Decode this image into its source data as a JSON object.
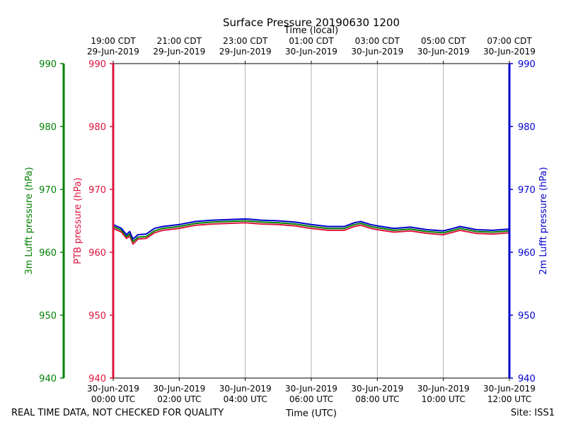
{
  "chart_data": {
    "type": "line",
    "title": "Surface Pressure 20190630 1200",
    "top_axis_label": "Time (local)",
    "xlabel": "Time (UTC)",
    "footer_left": "REAL TIME DATA, NOT CHECKED FOR QUALITY",
    "footer_right": "Site: ISS1",
    "grid": "vertical lines at x ticks",
    "xlim_utc_hours": [
      0,
      12
    ],
    "ylim": [
      940,
      990
    ],
    "y_ticks": [
      940,
      950,
      960,
      970,
      980,
      990
    ],
    "x_ticks_bottom": [
      {
        "hour": 0,
        "date": "30-Jun-2019",
        "time": "00:00 UTC"
      },
      {
        "hour": 2,
        "date": "30-Jun-2019",
        "time": "02:00 UTC"
      },
      {
        "hour": 4,
        "date": "30-Jun-2019",
        "time": "04:00 UTC"
      },
      {
        "hour": 6,
        "date": "30-Jun-2019",
        "time": "06:00 UTC"
      },
      {
        "hour": 8,
        "date": "30-Jun-2019",
        "time": "08:00 UTC"
      },
      {
        "hour": 10,
        "date": "30-Jun-2019",
        "time": "10:00 UTC"
      },
      {
        "hour": 12,
        "date": "30-Jun-2019",
        "time": "12:00 UTC"
      }
    ],
    "x_ticks_top": [
      {
        "hour": 0,
        "time": "19:00 CDT",
        "date": "29-Jun-2019"
      },
      {
        "hour": 2,
        "time": "21:00 CDT",
        "date": "29-Jun-2019"
      },
      {
        "hour": 4,
        "time": "23:00 CDT",
        "date": "29-Jun-2019"
      },
      {
        "hour": 6,
        "time": "01:00 CDT",
        "date": "30-Jun-2019"
      },
      {
        "hour": 8,
        "time": "03:00 CDT",
        "date": "30-Jun-2019"
      },
      {
        "hour": 10,
        "time": "05:00 CDT",
        "date": "30-Jun-2019"
      },
      {
        "hour": 12,
        "time": "07:00 CDT",
        "date": "30-Jun-2019"
      }
    ],
    "axes": [
      {
        "id": "lufft3m",
        "label": "3m Lufft pressure (hPa)",
        "color": "#008000",
        "side": "far-left"
      },
      {
        "id": "ptb",
        "label": "PTB pressure (hPa)",
        "color": "#dc143c",
        "side": "left"
      },
      {
        "id": "lufft2m",
        "label": "2m Lufft pressure (hPa)",
        "color": "#0000cd",
        "side": "right"
      }
    ],
    "x": [
      0,
      0.25,
      0.4,
      0.5,
      0.6,
      0.75,
      1.0,
      1.25,
      1.5,
      2.0,
      2.5,
      3.0,
      3.5,
      4.0,
      4.5,
      5.0,
      5.5,
      6.0,
      6.5,
      7.0,
      7.3,
      7.5,
      7.8,
      8.0,
      8.5,
      9.0,
      9.5,
      10.0,
      10.3,
      10.5,
      11.0,
      11.5,
      12.0
    ],
    "series": [
      {
        "axis": "ptb",
        "color": "#dc143c",
        "values": [
          963.8,
          963.2,
          962.2,
          962.6,
          961.3,
          962.1,
          962.2,
          963.1,
          963.5,
          963.8,
          964.3,
          964.5,
          964.6,
          964.7,
          964.5,
          964.4,
          964.2,
          963.8,
          963.5,
          963.5,
          964.1,
          964.3,
          963.8,
          963.6,
          963.2,
          963.4,
          963.0,
          962.8,
          963.2,
          963.5,
          963.0,
          962.9,
          963.1
        ]
      },
      {
        "axis": "lufft3m",
        "color": "#008000",
        "values": [
          964.1,
          963.5,
          962.5,
          962.9,
          961.7,
          962.4,
          962.5,
          963.4,
          963.8,
          964.1,
          964.6,
          964.8,
          964.9,
          965.0,
          964.8,
          964.7,
          964.5,
          964.1,
          963.8,
          963.8,
          964.4,
          964.6,
          964.1,
          963.9,
          963.5,
          963.7,
          963.3,
          963.1,
          963.5,
          963.8,
          963.3,
          963.2,
          963.4
        ]
      },
      {
        "axis": "lufft2m",
        "color": "#0000cd",
        "values": [
          964.4,
          963.8,
          962.8,
          963.3,
          962.1,
          962.8,
          962.9,
          963.8,
          964.1,
          964.4,
          964.9,
          965.1,
          965.2,
          965.3,
          965.1,
          965.0,
          964.8,
          964.4,
          964.1,
          964.1,
          964.7,
          964.9,
          964.4,
          964.2,
          963.8,
          964.0,
          963.6,
          963.4,
          963.8,
          964.1,
          963.6,
          963.5,
          963.7
        ]
      }
    ]
  }
}
